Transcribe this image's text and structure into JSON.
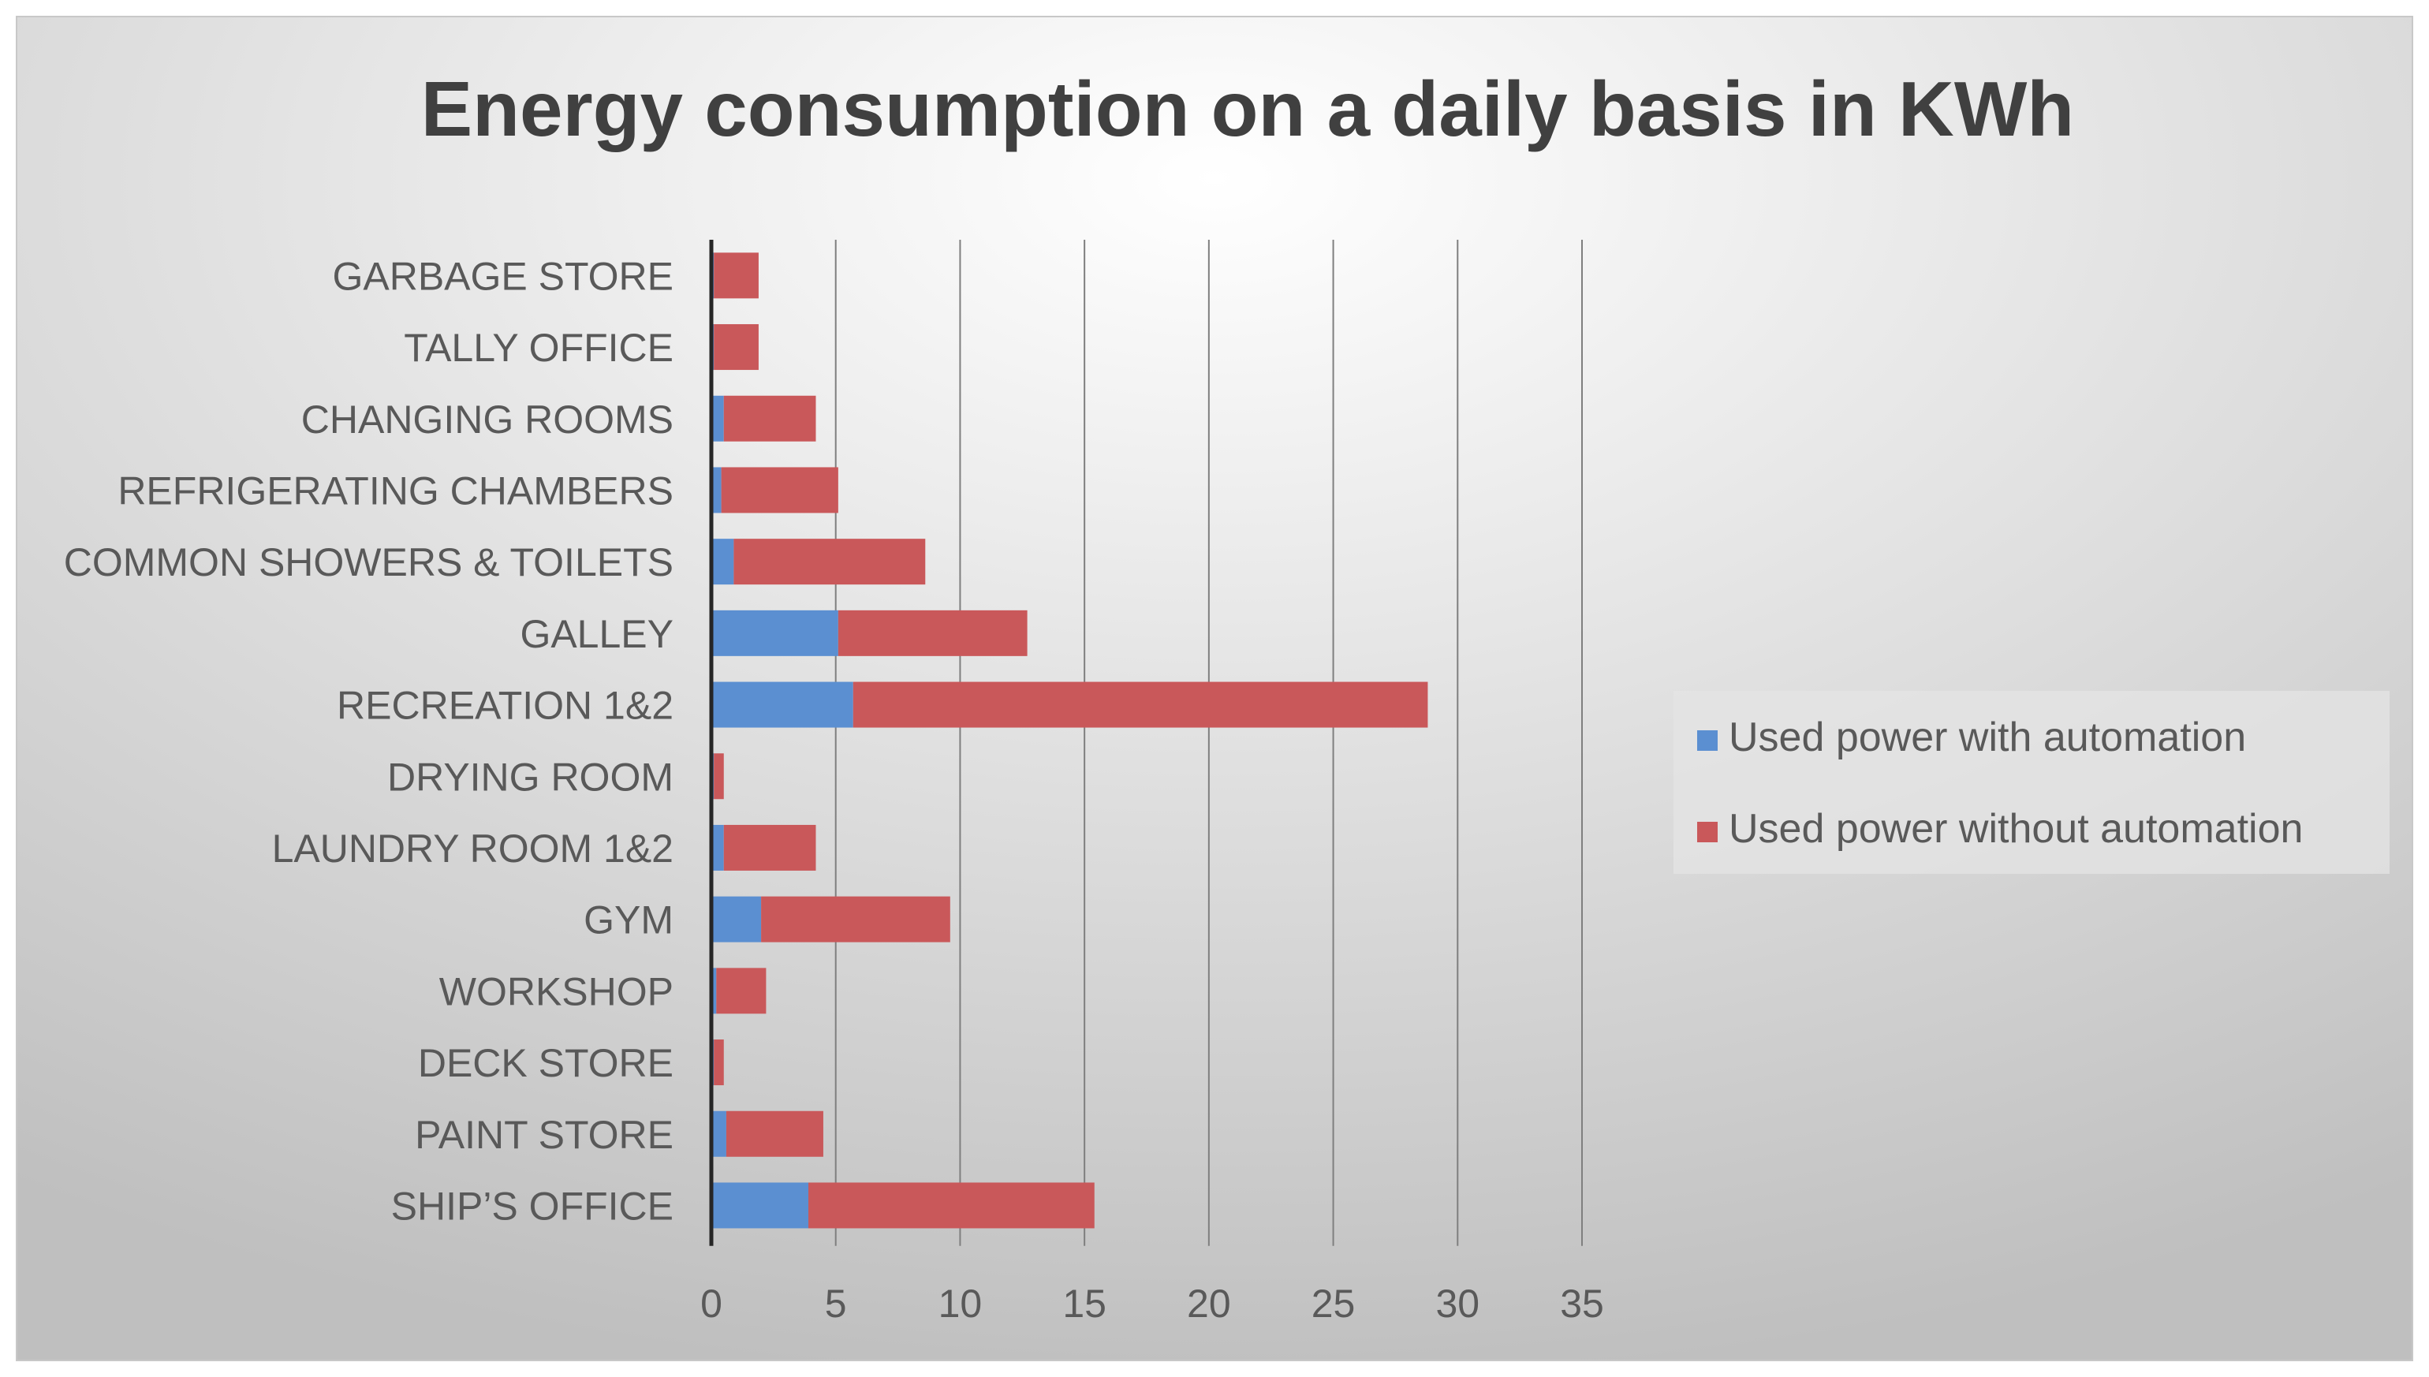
{
  "chart_data": {
    "type": "bar",
    "orientation": "horizontal",
    "stacked": true,
    "title": "Energy consumption on a daily basis in KWh",
    "xlabel": "",
    "ylabel": "",
    "xlim": [
      0,
      35
    ],
    "xticks": [
      "0",
      "5",
      "10",
      "15",
      "20",
      "25",
      "30",
      "35"
    ],
    "grid": true,
    "legend_position": "right",
    "categories": [
      "GARBAGE STORE",
      "TALLY OFFICE",
      "CHANGING ROOMS",
      "REFRIGERATING CHAMBERS",
      "COMMON SHOWERS & TOILETS",
      "GALLEY",
      "RECREATION 1&2",
      "DRYING ROOM",
      "LAUNDRY ROOM 1&2",
      "GYM",
      "WORKSHOP",
      "DECK STORE",
      "PAINT STORE",
      "SHIP’S OFFICE"
    ],
    "series": [
      {
        "name": "Used power with automation",
        "color": "#5b8fd1",
        "values": [
          0.1,
          0.1,
          0.5,
          0.4,
          0.9,
          5.1,
          5.7,
          0.1,
          0.5,
          2.0,
          0.2,
          0.1,
          0.6,
          3.9
        ]
      },
      {
        "name": "Used power without automation",
        "color": "#c9585a",
        "values": [
          1.8,
          1.8,
          3.7,
          4.7,
          7.7,
          7.6,
          23.1,
          0.4,
          3.7,
          7.6,
          2.0,
          0.4,
          3.9,
          11.5
        ]
      }
    ],
    "background_gradient": [
      "#ffffff",
      "#bfbfbf"
    ],
    "legend_box_color": "#e4e4e4",
    "text_color": "#595959",
    "title_color": "#404040",
    "grid_color": "#7f7f7f",
    "axis_color": "#262626"
  }
}
